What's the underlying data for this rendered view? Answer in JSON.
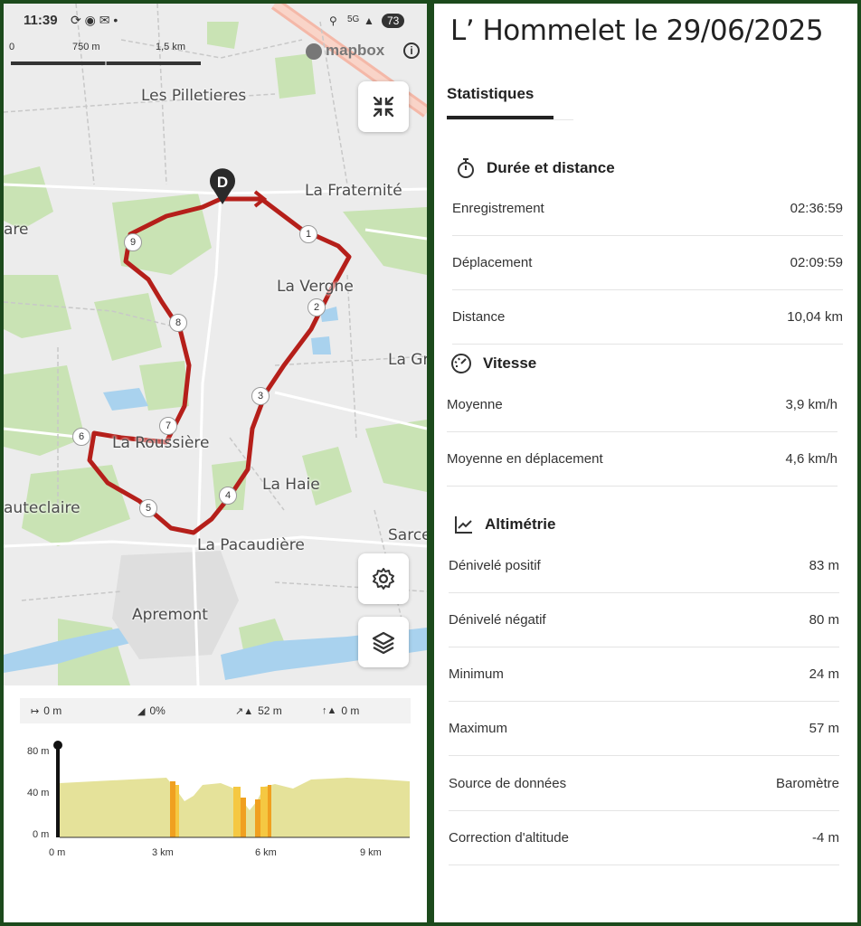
{
  "status_bar": {
    "time": "11:39",
    "battery": "73",
    "network": "5G"
  },
  "map": {
    "scale": {
      "labels": [
        "0",
        "750 m",
        "1,5 km"
      ]
    },
    "attribution": "mapbox",
    "place_labels": [
      "Les Pilletieres",
      "La Fraternité",
      "are",
      "La Vergne",
      "La Gr",
      "La Roussière",
      "auteclaire",
      "La Haie",
      "Sarce",
      "La Pacaudière",
      "Apremont"
    ],
    "start_marker": "D",
    "km_markers": [
      "1",
      "2",
      "3",
      "4",
      "5",
      "6",
      "7",
      "8",
      "9"
    ],
    "route_color": "#b51f1a"
  },
  "elevation": {
    "stats": {
      "distance": "0 m",
      "slope": "0%",
      "gain": "52 m",
      "altitude": "0 m"
    },
    "y_ticks": [
      "80 m",
      "40 m",
      "0 m"
    ],
    "x_ticks": [
      "0 m",
      "3 km",
      "6 km",
      "9 km"
    ],
    "fill_color": "#e5e29a",
    "highlight_colors": [
      "#f0a020",
      "#f5c842"
    ]
  },
  "activity": {
    "title": "L’ Hommelet le 29/06/2025",
    "tab": "Statistiques",
    "sections": {
      "duration": {
        "title": "Durée et distance",
        "rows": [
          {
            "label": "Enregistrement",
            "value": "02:36:59"
          },
          {
            "label": "Déplacement",
            "value": "02:09:59"
          },
          {
            "label": "Distance",
            "value": "10,04 km"
          }
        ]
      },
      "speed": {
        "title": "Vitesse",
        "rows": [
          {
            "label": "Moyenne",
            "value": "3,9 km/h"
          },
          {
            "label": "Moyenne en déplacement",
            "value": "4,6 km/h"
          }
        ]
      },
      "altimetry": {
        "title": "Altimétrie",
        "rows": [
          {
            "label": "Dénivelé positif",
            "value": "83 m"
          },
          {
            "label": "Dénivelé négatif",
            "value": "80 m"
          },
          {
            "label": "Minimum",
            "value": "24 m"
          },
          {
            "label": "Maximum",
            "value": "57 m"
          },
          {
            "label": "Source de données",
            "value": "Baromètre"
          },
          {
            "label": "Correction d'altitude",
            "value": "-4 m"
          }
        ]
      }
    }
  }
}
